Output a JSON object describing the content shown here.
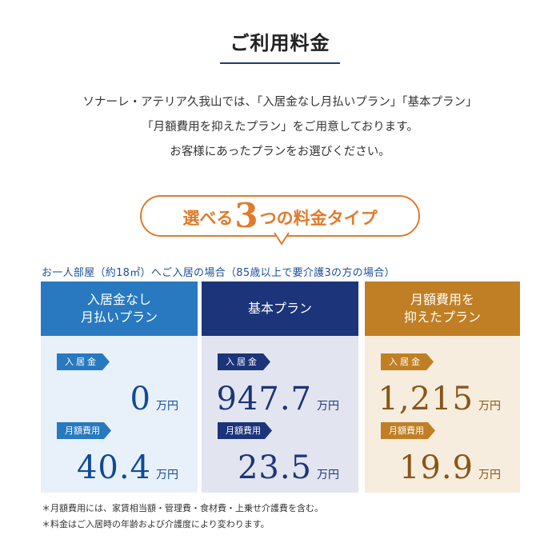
{
  "header": {
    "title": "ご利用料金"
  },
  "intro": {
    "lines": [
      "ソナーレ・アテリア久我山では、「入居金なし月払いプラン」「基本プラン」",
      "「月額費用を抑えたプラン」をご用意しております。",
      "お客様にあったプランをお選びください。"
    ]
  },
  "banner": {
    "prefix": "選べる",
    "number": "3",
    "suffix": "つの料金タイプ"
  },
  "subheading": "お一人部屋（約18㎡）へご入居の場合（85歳以上で要介護3の方の場合）",
  "colors": {
    "plan1": "#2879c0",
    "plan2": "#1b347a",
    "plan3": "#c07f24",
    "banner": "#e07b2c"
  },
  "plans": [
    {
      "name": "入居金なし\n月払いプラン",
      "deposit_label": "入居金",
      "deposit_value": "0",
      "deposit_unit": "万円",
      "monthly_label": "月額費用",
      "monthly_value": "40.4",
      "monthly_unit": "万円"
    },
    {
      "name": "基本プラン",
      "deposit_label": "入居金",
      "deposit_value": "947.7",
      "deposit_unit": "万円",
      "monthly_label": "月額費用",
      "monthly_value": "23.5",
      "monthly_unit": "万円"
    },
    {
      "name": "月額費用を\n抑えたプラン",
      "deposit_label": "入居金",
      "deposit_value": "1,215",
      "deposit_unit": "万円",
      "monthly_label": "月額費用",
      "monthly_value": "19.9",
      "monthly_unit": "万円"
    }
  ],
  "notes": [
    "＊月額費用には、家賃相当額・管理費・食材費・上乗せ介護費を含む。",
    "＊料金はご入居時の年齢および介護度により変わります。"
  ]
}
